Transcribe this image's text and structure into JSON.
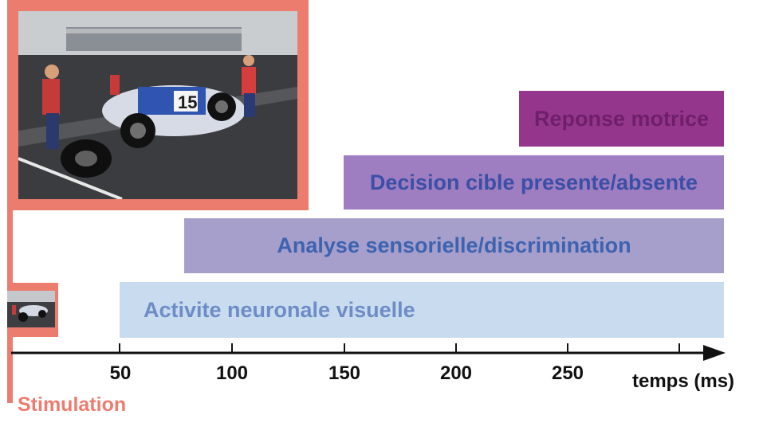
{
  "processes": [
    {
      "label": "Reponse motrice",
      "color": "#95368d",
      "start_ms": 228,
      "end_ms": 318
    },
    {
      "label": "Decision cible presente/absente",
      "color": "#9e7ec0",
      "start_ms": 150,
      "end_ms": 318
    },
    {
      "label": "Analyse sensorielle/discrimination",
      "color": "#a69fcb",
      "start_ms": 78,
      "end_ms": 318
    },
    {
      "label": "Activite neuronale visuelle",
      "color": "#c8dbef",
      "start_ms": 50,
      "end_ms": 318
    }
  ],
  "axis": {
    "ticks": [
      "50",
      "100",
      "150",
      "200",
      "250"
    ],
    "title": "temps (ms)"
  },
  "stimulation": {
    "label": "Stimulation",
    "color": "#ec7d6e"
  },
  "images": {
    "main_photo": "race-car-pit-stop-photo",
    "small_photo": "race-car-thumbnail"
  }
}
